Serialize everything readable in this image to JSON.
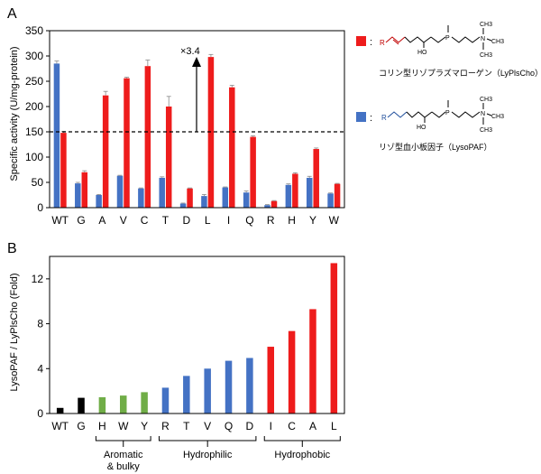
{
  "panel_labels": {
    "a": "A",
    "b": "B"
  },
  "annotation": {
    "fold_text": "×3.4"
  },
  "legend": {
    "red_marker": ":",
    "red_label": "コリン型リゾプラズマローゲン（LyPlsCho）",
    "blue_marker": ":",
    "blue_label": "リゾ型血小板因子（LysoPAF）",
    "structure_r": "R",
    "structure_ho": "HO",
    "structure_n": "N",
    "structure_p": "P",
    "structure_ch3": "CH3",
    "colors": {
      "red": "#ee1c1c",
      "blue": "#4472c4"
    }
  },
  "chart_data": [
    {
      "type": "bar",
      "panel": "A",
      "title": "",
      "xlabel": "",
      "ylabel": "Specific activity (U/mg-protein)",
      "ylim": [
        0,
        350
      ],
      "yticks": [
        0,
        50,
        100,
        150,
        200,
        250,
        300,
        350
      ],
      "categories": [
        "WT",
        "G",
        "A",
        "V",
        "C",
        "T",
        "D",
        "L",
        "I",
        "Q",
        "R",
        "H",
        "Y",
        "W"
      ],
      "reference_line": 150,
      "series": [
        {
          "name": "LysoPAF",
          "color": "#4472c4",
          "values": [
            285,
            48,
            25,
            63,
            38,
            59,
            8,
            23,
            40,
            30,
            5,
            45,
            59,
            28
          ],
          "errors": [
            5,
            2,
            1,
            1,
            1,
            2,
            1,
            3,
            1,
            3,
            1,
            2,
            3,
            1
          ]
        },
        {
          "name": "LyPlsCho",
          "color": "#ee1c1c",
          "values": [
            148,
            70,
            222,
            256,
            280,
            200,
            38,
            298,
            238,
            140,
            13,
            67,
            116,
            47
          ],
          "errors": [
            3,
            3,
            8,
            2,
            12,
            20,
            1,
            5,
            4,
            2,
            1,
            2,
            2,
            1
          ]
        }
      ]
    },
    {
      "type": "bar",
      "panel": "B",
      "title": "",
      "xlabel": "",
      "ylabel": "LysoPAF / LyPlsCho (Fold)",
      "ylim": [
        0,
        14
      ],
      "yticks": [
        0,
        4,
        8,
        12
      ],
      "categories": [
        "WT",
        "G",
        "H",
        "W",
        "Y",
        "R",
        "T",
        "V",
        "Q",
        "D",
        "I",
        "C",
        "A",
        "L"
      ],
      "values": [
        0.5,
        1.4,
        1.45,
        1.6,
        1.9,
        2.3,
        3.35,
        4.0,
        4.7,
        4.95,
        5.95,
        7.35,
        9.3,
        13.4
      ],
      "colors": [
        "#000000",
        "#000000",
        "#70ad47",
        "#70ad47",
        "#70ad47",
        "#4472c4",
        "#4472c4",
        "#4472c4",
        "#4472c4",
        "#4472c4",
        "#ee1c1c",
        "#ee1c1c",
        "#ee1c1c",
        "#ee1c1c"
      ],
      "groups": [
        {
          "label_line1": "Aromatic",
          "label_line2": "& bulky",
          "from": "H",
          "to": "Y"
        },
        {
          "label_line1": "Hydrophilic",
          "label_line2": "",
          "from": "R",
          "to": "D"
        },
        {
          "label_line1": "Hydrophobic",
          "label_line2": "",
          "from": "I",
          "to": "L"
        }
      ]
    }
  ]
}
